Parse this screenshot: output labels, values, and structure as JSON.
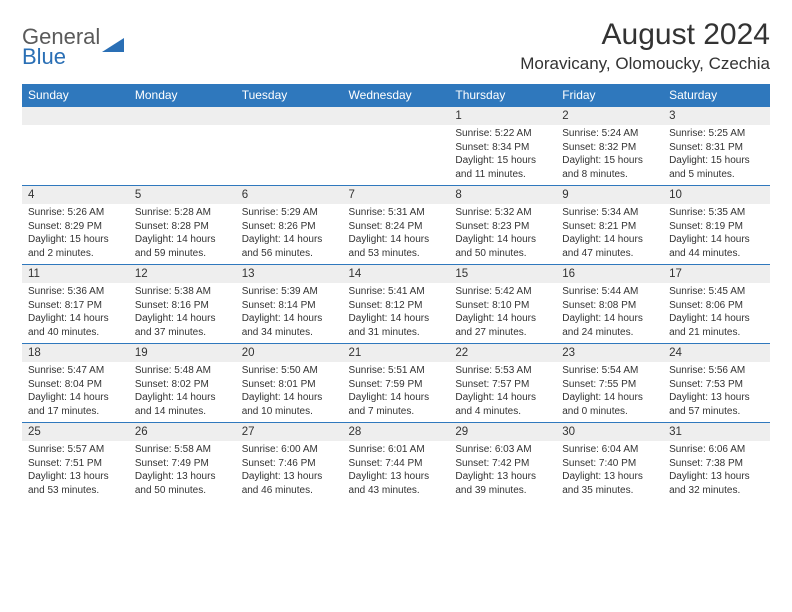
{
  "logo": {
    "text1": "General",
    "text2": "Blue"
  },
  "title": "August 2024",
  "location": "Moravicany, Olomoucky, Czechia",
  "colors": {
    "header_bg": "#2f78bd",
    "header_text": "#ffffff",
    "daynum_bg": "#eeeeee",
    "border": "#2f78bd",
    "text": "#333333",
    "logo_gray": "#5a5a5a",
    "logo_blue": "#2a6fb5"
  },
  "day_headers": [
    "Sunday",
    "Monday",
    "Tuesday",
    "Wednesday",
    "Thursday",
    "Friday",
    "Saturday"
  ],
  "weeks": [
    [
      {
        "num": "",
        "lines": []
      },
      {
        "num": "",
        "lines": []
      },
      {
        "num": "",
        "lines": []
      },
      {
        "num": "",
        "lines": []
      },
      {
        "num": "1",
        "lines": [
          "Sunrise: 5:22 AM",
          "Sunset: 8:34 PM",
          "Daylight: 15 hours and 11 minutes."
        ]
      },
      {
        "num": "2",
        "lines": [
          "Sunrise: 5:24 AM",
          "Sunset: 8:32 PM",
          "Daylight: 15 hours and 8 minutes."
        ]
      },
      {
        "num": "3",
        "lines": [
          "Sunrise: 5:25 AM",
          "Sunset: 8:31 PM",
          "Daylight: 15 hours and 5 minutes."
        ]
      }
    ],
    [
      {
        "num": "4",
        "lines": [
          "Sunrise: 5:26 AM",
          "Sunset: 8:29 PM",
          "Daylight: 15 hours and 2 minutes."
        ]
      },
      {
        "num": "5",
        "lines": [
          "Sunrise: 5:28 AM",
          "Sunset: 8:28 PM",
          "Daylight: 14 hours and 59 minutes."
        ]
      },
      {
        "num": "6",
        "lines": [
          "Sunrise: 5:29 AM",
          "Sunset: 8:26 PM",
          "Daylight: 14 hours and 56 minutes."
        ]
      },
      {
        "num": "7",
        "lines": [
          "Sunrise: 5:31 AM",
          "Sunset: 8:24 PM",
          "Daylight: 14 hours and 53 minutes."
        ]
      },
      {
        "num": "8",
        "lines": [
          "Sunrise: 5:32 AM",
          "Sunset: 8:23 PM",
          "Daylight: 14 hours and 50 minutes."
        ]
      },
      {
        "num": "9",
        "lines": [
          "Sunrise: 5:34 AM",
          "Sunset: 8:21 PM",
          "Daylight: 14 hours and 47 minutes."
        ]
      },
      {
        "num": "10",
        "lines": [
          "Sunrise: 5:35 AM",
          "Sunset: 8:19 PM",
          "Daylight: 14 hours and 44 minutes."
        ]
      }
    ],
    [
      {
        "num": "11",
        "lines": [
          "Sunrise: 5:36 AM",
          "Sunset: 8:17 PM",
          "Daylight: 14 hours and 40 minutes."
        ]
      },
      {
        "num": "12",
        "lines": [
          "Sunrise: 5:38 AM",
          "Sunset: 8:16 PM",
          "Daylight: 14 hours and 37 minutes."
        ]
      },
      {
        "num": "13",
        "lines": [
          "Sunrise: 5:39 AM",
          "Sunset: 8:14 PM",
          "Daylight: 14 hours and 34 minutes."
        ]
      },
      {
        "num": "14",
        "lines": [
          "Sunrise: 5:41 AM",
          "Sunset: 8:12 PM",
          "Daylight: 14 hours and 31 minutes."
        ]
      },
      {
        "num": "15",
        "lines": [
          "Sunrise: 5:42 AM",
          "Sunset: 8:10 PM",
          "Daylight: 14 hours and 27 minutes."
        ]
      },
      {
        "num": "16",
        "lines": [
          "Sunrise: 5:44 AM",
          "Sunset: 8:08 PM",
          "Daylight: 14 hours and 24 minutes."
        ]
      },
      {
        "num": "17",
        "lines": [
          "Sunrise: 5:45 AM",
          "Sunset: 8:06 PM",
          "Daylight: 14 hours and 21 minutes."
        ]
      }
    ],
    [
      {
        "num": "18",
        "lines": [
          "Sunrise: 5:47 AM",
          "Sunset: 8:04 PM",
          "Daylight: 14 hours and 17 minutes."
        ]
      },
      {
        "num": "19",
        "lines": [
          "Sunrise: 5:48 AM",
          "Sunset: 8:02 PM",
          "Daylight: 14 hours and 14 minutes."
        ]
      },
      {
        "num": "20",
        "lines": [
          "Sunrise: 5:50 AM",
          "Sunset: 8:01 PM",
          "Daylight: 14 hours and 10 minutes."
        ]
      },
      {
        "num": "21",
        "lines": [
          "Sunrise: 5:51 AM",
          "Sunset: 7:59 PM",
          "Daylight: 14 hours and 7 minutes."
        ]
      },
      {
        "num": "22",
        "lines": [
          "Sunrise: 5:53 AM",
          "Sunset: 7:57 PM",
          "Daylight: 14 hours and 4 minutes."
        ]
      },
      {
        "num": "23",
        "lines": [
          "Sunrise: 5:54 AM",
          "Sunset: 7:55 PM",
          "Daylight: 14 hours and 0 minutes."
        ]
      },
      {
        "num": "24",
        "lines": [
          "Sunrise: 5:56 AM",
          "Sunset: 7:53 PM",
          "Daylight: 13 hours and 57 minutes."
        ]
      }
    ],
    [
      {
        "num": "25",
        "lines": [
          "Sunrise: 5:57 AM",
          "Sunset: 7:51 PM",
          "Daylight: 13 hours and 53 minutes."
        ]
      },
      {
        "num": "26",
        "lines": [
          "Sunrise: 5:58 AM",
          "Sunset: 7:49 PM",
          "Daylight: 13 hours and 50 minutes."
        ]
      },
      {
        "num": "27",
        "lines": [
          "Sunrise: 6:00 AM",
          "Sunset: 7:46 PM",
          "Daylight: 13 hours and 46 minutes."
        ]
      },
      {
        "num": "28",
        "lines": [
          "Sunrise: 6:01 AM",
          "Sunset: 7:44 PM",
          "Daylight: 13 hours and 43 minutes."
        ]
      },
      {
        "num": "29",
        "lines": [
          "Sunrise: 6:03 AM",
          "Sunset: 7:42 PM",
          "Daylight: 13 hours and 39 minutes."
        ]
      },
      {
        "num": "30",
        "lines": [
          "Sunrise: 6:04 AM",
          "Sunset: 7:40 PM",
          "Daylight: 13 hours and 35 minutes."
        ]
      },
      {
        "num": "31",
        "lines": [
          "Sunrise: 6:06 AM",
          "Sunset: 7:38 PM",
          "Daylight: 13 hours and 32 minutes."
        ]
      }
    ]
  ]
}
